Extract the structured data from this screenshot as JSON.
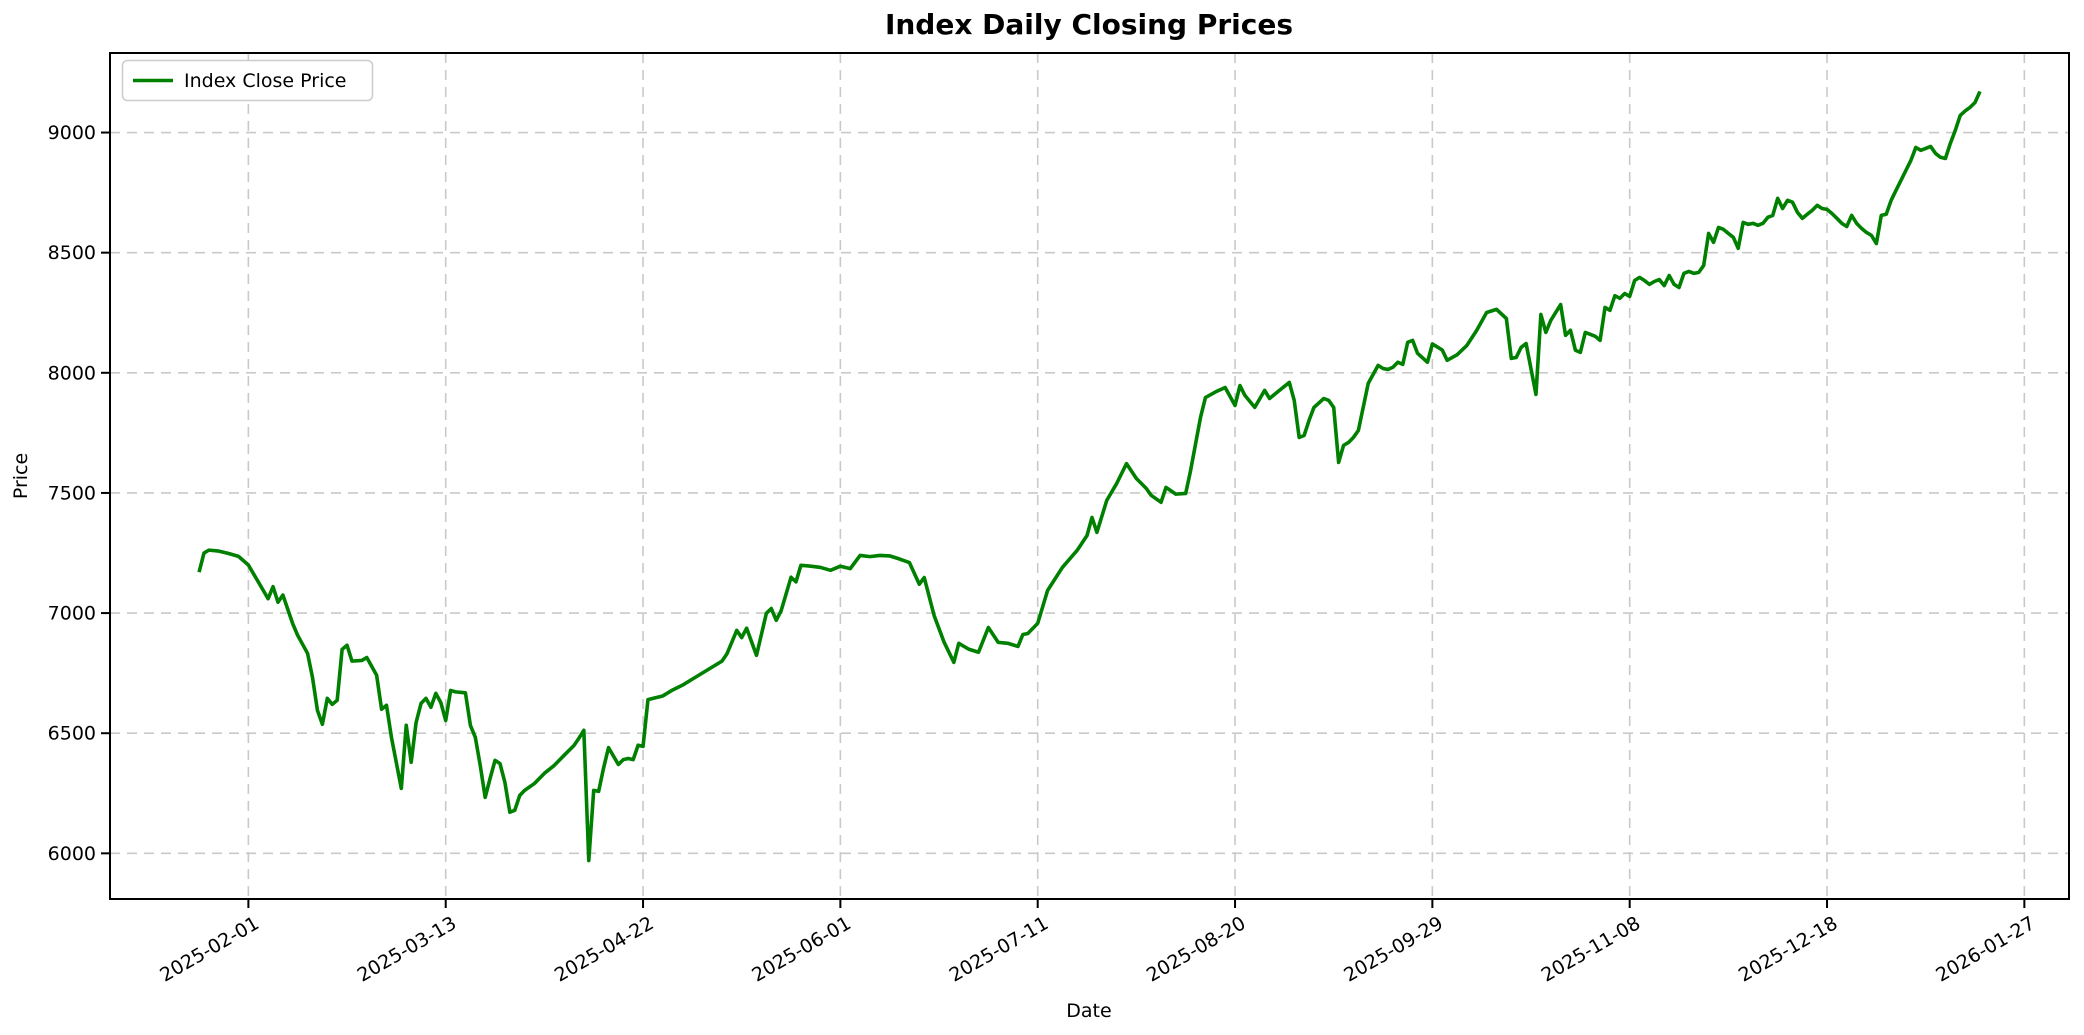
{
  "figure": {
    "title": "Index Daily Closing Prices",
    "xlabel": "Date",
    "ylabel": "Price",
    "legend": {
      "label": "Index Close Price"
    }
  },
  "colors": {
    "line": "#008000",
    "grid": "#c9c9c9",
    "spine": "#000000",
    "background": "#ffffff",
    "legend_border": "#cccccc",
    "text": "#000000"
  },
  "chart_data": {
    "type": "line",
    "title": "Index Daily Closing Prices",
    "xlabel": "Date",
    "ylabel": "Price",
    "legend": [
      "Index Close Price"
    ],
    "legend_position": "upper left",
    "grid": "dashed",
    "line_color": "#008000",
    "x_start_date": "2025-01-22",
    "x_unit": "days_from_start",
    "x_tick_days": [
      10,
      50,
      90,
      130,
      170,
      210,
      250,
      290,
      330,
      370
    ],
    "x_tick_labels": [
      "2025-02-01",
      "2025-03-13",
      "2025-04-22",
      "2025-06-01",
      "2025-07-11",
      "2025-08-20",
      "2025-09-29",
      "2025-11-08",
      "2025-12-18",
      "2026-01-27"
    ],
    "x_tick_rotation_deg": 30,
    "y_ticks": [
      6000,
      6500,
      7000,
      7500,
      8000,
      8500,
      9000
    ],
    "xlim_days": [
      -18.05,
      379.05
    ],
    "ylim": [
      5810,
      9331
    ],
    "points": [
      [
        0,
        7170
      ],
      [
        1,
        7250
      ],
      [
        2,
        7262
      ],
      [
        4,
        7258
      ],
      [
        6,
        7248
      ],
      [
        8,
        7236
      ],
      [
        10,
        7200
      ],
      [
        11,
        7165
      ],
      [
        13,
        7095
      ],
      [
        14,
        7060
      ],
      [
        15,
        7110
      ],
      [
        16,
        7045
      ],
      [
        17,
        7075
      ],
      [
        19,
        6955
      ],
      [
        20,
        6907
      ],
      [
        22,
        6832
      ],
      [
        23,
        6732
      ],
      [
        24,
        6595
      ],
      [
        25,
        6537
      ],
      [
        26,
        6645
      ],
      [
        27,
        6620
      ],
      [
        28,
        6637
      ],
      [
        29,
        6849
      ],
      [
        30,
        6866
      ],
      [
        31,
        6800
      ],
      [
        33,
        6803
      ],
      [
        34,
        6815
      ],
      [
        36,
        6741
      ],
      [
        37,
        6600
      ],
      [
        38,
        6616
      ],
      [
        39,
        6483
      ],
      [
        41,
        6270
      ],
      [
        42,
        6533
      ],
      [
        43,
        6379
      ],
      [
        44,
        6545
      ],
      [
        45,
        6624
      ],
      [
        46,
        6645
      ],
      [
        47,
        6608
      ],
      [
        48,
        6666
      ],
      [
        49,
        6628
      ],
      [
        50,
        6553
      ],
      [
        51,
        6678
      ],
      [
        52,
        6672
      ],
      [
        54,
        6668
      ],
      [
        55,
        6533
      ],
      [
        56,
        6483
      ],
      [
        57,
        6366
      ],
      [
        58,
        6233
      ],
      [
        59,
        6312
      ],
      [
        60,
        6387
      ],
      [
        61,
        6374
      ],
      [
        62,
        6295
      ],
      [
        63,
        6171
      ],
      [
        64,
        6179
      ],
      [
        65,
        6241
      ],
      [
        66,
        6262
      ],
      [
        68,
        6291
      ],
      [
        70,
        6333
      ],
      [
        72,
        6366
      ],
      [
        74,
        6408
      ],
      [
        76,
        6449
      ],
      [
        77,
        6479
      ],
      [
        78,
        6512
      ],
      [
        79,
        5970
      ],
      [
        80,
        6262
      ],
      [
        81,
        6258
      ],
      [
        82,
        6355
      ],
      [
        83,
        6440
      ],
      [
        85,
        6370
      ],
      [
        86,
        6390
      ],
      [
        87,
        6395
      ],
      [
        88,
        6390
      ],
      [
        89,
        6450
      ],
      [
        90,
        6445
      ],
      [
        91,
        6640
      ],
      [
        92,
        6645
      ],
      [
        94,
        6655
      ],
      [
        96,
        6680
      ],
      [
        98,
        6700
      ],
      [
        100,
        6725
      ],
      [
        102,
        6750
      ],
      [
        104,
        6775
      ],
      [
        106,
        6800
      ],
      [
        107,
        6830
      ],
      [
        109,
        6928
      ],
      [
        110,
        6898
      ],
      [
        111,
        6937
      ],
      [
        113,
        6824
      ],
      [
        115,
        6999
      ],
      [
        116,
        7019
      ],
      [
        117,
        6970
      ],
      [
        118,
        7010
      ],
      [
        120,
        7149
      ],
      [
        121,
        7130
      ],
      [
        122,
        7199
      ],
      [
        124,
        7195
      ],
      [
        126,
        7190
      ],
      [
        128,
        7178
      ],
      [
        130,
        7195
      ],
      [
        132,
        7185
      ],
      [
        134,
        7240
      ],
      [
        136,
        7235
      ],
      [
        138,
        7240
      ],
      [
        140,
        7238
      ],
      [
        142,
        7225
      ],
      [
        144,
        7210
      ],
      [
        146,
        7120
      ],
      [
        147,
        7148
      ],
      [
        149,
        6990
      ],
      [
        151,
        6880
      ],
      [
        153,
        6795
      ],
      [
        154,
        6874
      ],
      [
        156,
        6850
      ],
      [
        158,
        6837
      ],
      [
        160,
        6940
      ],
      [
        162,
        6878
      ],
      [
        164,
        6874
      ],
      [
        166,
        6861
      ],
      [
        167,
        6911
      ],
      [
        168,
        6915
      ],
      [
        170,
        6957
      ],
      [
        172,
        7094
      ],
      [
        175,
        7190
      ],
      [
        178,
        7261
      ],
      [
        180,
        7323
      ],
      [
        181,
        7398
      ],
      [
        182,
        7336
      ],
      [
        184,
        7469
      ],
      [
        186,
        7539
      ],
      [
        188,
        7622
      ],
      [
        190,
        7560
      ],
      [
        192,
        7519
      ],
      [
        193,
        7490
      ],
      [
        195,
        7461
      ],
      [
        196,
        7523
      ],
      [
        198,
        7495
      ],
      [
        200,
        7498
      ],
      [
        201,
        7594
      ],
      [
        203,
        7814
      ],
      [
        204,
        7897
      ],
      [
        206,
        7920
      ],
      [
        208,
        7939
      ],
      [
        210,
        7864
      ],
      [
        211,
        7947
      ],
      [
        212,
        7906
      ],
      [
        214,
        7856
      ],
      [
        216,
        7927
      ],
      [
        217,
        7893
      ],
      [
        219,
        7927
      ],
      [
        221,
        7960
      ],
      [
        222,
        7885
      ],
      [
        223,
        7731
      ],
      [
        224,
        7739
      ],
      [
        225,
        7802
      ],
      [
        226,
        7856
      ],
      [
        228,
        7893
      ],
      [
        229,
        7885
      ],
      [
        230,
        7856
      ],
      [
        231,
        7627
      ],
      [
        232,
        7698
      ],
      [
        233,
        7710
      ],
      [
        234,
        7731
      ],
      [
        235,
        7760
      ],
      [
        237,
        7956
      ],
      [
        239,
        8031
      ],
      [
        240,
        8018
      ],
      [
        241,
        8014
      ],
      [
        242,
        8023
      ],
      [
        243,
        8044
      ],
      [
        244,
        8035
      ],
      [
        245,
        8127
      ],
      [
        246,
        8135
      ],
      [
        247,
        8081
      ],
      [
        249,
        8044
      ],
      [
        250,
        8120
      ],
      [
        252,
        8095
      ],
      [
        253,
        8052
      ],
      [
        255,
        8075
      ],
      [
        257,
        8114
      ],
      [
        259,
        8177
      ],
      [
        261,
        8251
      ],
      [
        263,
        8264
      ],
      [
        265,
        8226
      ],
      [
        266,
        8060
      ],
      [
        267,
        8064
      ],
      [
        268,
        8106
      ],
      [
        269,
        8122
      ],
      [
        271,
        7910
      ],
      [
        272,
        8243
      ],
      [
        273,
        8168
      ],
      [
        274,
        8218
      ],
      [
        276,
        8284
      ],
      [
        277,
        8156
      ],
      [
        278,
        8177
      ],
      [
        279,
        8094
      ],
      [
        280,
        8085
      ],
      [
        281,
        8168
      ],
      [
        282,
        8160
      ],
      [
        283,
        8152
      ],
      [
        284,
        8135
      ],
      [
        285,
        8272
      ],
      [
        286,
        8260
      ],
      [
        287,
        8321
      ],
      [
        288,
        8310
      ],
      [
        289,
        8330
      ],
      [
        290,
        8318
      ],
      [
        291,
        8384
      ],
      [
        292,
        8397
      ],
      [
        293,
        8384
      ],
      [
        294,
        8368
      ],
      [
        295,
        8380
      ],
      [
        296,
        8388
      ],
      [
        297,
        8363
      ],
      [
        298,
        8405
      ],
      [
        299,
        8368
      ],
      [
        300,
        8355
      ],
      [
        301,
        8414
      ],
      [
        302,
        8422
      ],
      [
        303,
        8414
      ],
      [
        304,
        8418
      ],
      [
        305,
        8447
      ],
      [
        306,
        8580
      ],
      [
        307,
        8543
      ],
      [
        308,
        8605
      ],
      [
        309,
        8597
      ],
      [
        310,
        8580
      ],
      [
        311,
        8564
      ],
      [
        312,
        8518
      ],
      [
        313,
        8626
      ],
      [
        314,
        8618
      ],
      [
        315,
        8622
      ],
      [
        316,
        8614
      ],
      [
        317,
        8622
      ],
      [
        318,
        8647
      ],
      [
        319,
        8655
      ],
      [
        320,
        8726
      ],
      [
        321,
        8684
      ],
      [
        322,
        8718
      ],
      [
        323,
        8710
      ],
      [
        324,
        8668
      ],
      [
        325,
        8643
      ],
      [
        326,
        8660
      ],
      [
        327,
        8676
      ],
      [
        328,
        8697
      ],
      [
        329,
        8684
      ],
      [
        330,
        8680
      ],
      [
        331,
        8663
      ],
      [
        332,
        8643
      ],
      [
        333,
        8622
      ],
      [
        334,
        8609
      ],
      [
        335,
        8655
      ],
      [
        336,
        8622
      ],
      [
        337,
        8601
      ],
      [
        338,
        8584
      ],
      [
        339,
        8572
      ],
      [
        340,
        8538
      ],
      [
        341,
        8655
      ],
      [
        342,
        8660
      ],
      [
        343,
        8718
      ],
      [
        344,
        8760
      ],
      [
        345,
        8801
      ],
      [
        346,
        8843
      ],
      [
        347,
        8884
      ],
      [
        348,
        8938
      ],
      [
        349,
        8926
      ],
      [
        350,
        8934
      ],
      [
        351,
        8942
      ],
      [
        352,
        8913
      ],
      [
        353,
        8897
      ],
      [
        354,
        8892
      ],
      [
        355,
        8955
      ],
      [
        356,
        9009
      ],
      [
        357,
        9071
      ],
      [
        358,
        9090
      ],
      [
        359,
        9105
      ],
      [
        360,
        9125
      ],
      [
        361,
        9171
      ]
    ]
  }
}
